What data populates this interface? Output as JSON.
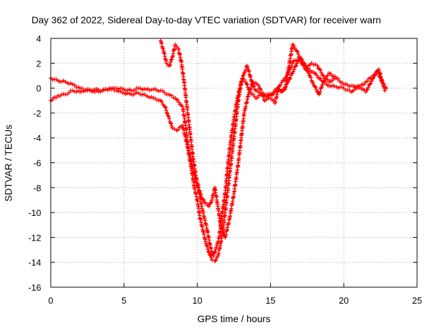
{
  "chart_data": {
    "type": "scatter",
    "title": "Day 362 of 2022, Sidereal Day-to-day VTEC variation (SDTVAR) for receiver warn",
    "xlabel": "GPS time / hours",
    "ylabel": "SDTVAR / TECUs",
    "xlim": [
      0,
      25
    ],
    "ylim": [
      -16,
      4
    ],
    "xticks": [
      "0",
      "5",
      "10",
      "15",
      "20",
      "25"
    ],
    "yticks": [
      "4",
      "2",
      "0",
      "-2",
      "-4",
      "-6",
      "-8",
      "-10",
      "-12",
      "-14",
      "-16"
    ],
    "grid": true,
    "marker": "+",
    "color": "#ff0000",
    "series": [
      {
        "name": "trace-1",
        "points": [
          [
            0.0,
            0.8
          ],
          [
            0.5,
            0.6
          ],
          [
            1.0,
            0.5
          ],
          [
            1.5,
            0.3
          ],
          [
            2.0,
            0.0
          ],
          [
            2.5,
            -0.2
          ],
          [
            3.0,
            -0.1
          ],
          [
            3.5,
            -0.2
          ],
          [
            4.0,
            -0.1
          ],
          [
            4.5,
            0.0
          ],
          [
            5.0,
            -0.1
          ],
          [
            5.5,
            -0.2
          ],
          [
            6.0,
            0.0
          ],
          [
            6.5,
            -0.1
          ],
          [
            7.0,
            -0.1
          ],
          [
            7.5,
            -0.2
          ],
          [
            8.0,
            -0.5
          ],
          [
            8.5,
            -0.8
          ],
          [
            9.0,
            -1.5
          ],
          [
            9.2,
            -3.0
          ],
          [
            9.4,
            -5.0
          ],
          [
            9.6,
            -6.5
          ],
          [
            9.8,
            -8.0
          ],
          [
            10.0,
            -9.0
          ],
          [
            10.2,
            -10.5
          ],
          [
            10.4,
            -11.5
          ],
          [
            10.6,
            -12.5
          ],
          [
            10.8,
            -13.2
          ],
          [
            11.0,
            -13.8
          ],
          [
            11.2,
            -13.9
          ],
          [
            11.4,
            -13.5
          ],
          [
            11.6,
            -12.5
          ],
          [
            11.8,
            -11.0
          ],
          [
            12.0,
            -9.0
          ],
          [
            12.2,
            -7.0
          ],
          [
            12.4,
            -5.0
          ],
          [
            12.6,
            -3.0
          ],
          [
            12.8,
            -1.0
          ],
          [
            13.0,
            0.5
          ],
          [
            13.2,
            1.2
          ],
          [
            13.4,
            1.8
          ],
          [
            13.6,
            1.0
          ],
          [
            13.8,
            0.2
          ],
          [
            14.0,
            -0.2
          ],
          [
            14.5,
            -0.6
          ],
          [
            15.0,
            -0.8
          ],
          [
            15.3,
            -1.2
          ],
          [
            15.6,
            0.2
          ],
          [
            16.0,
            0.8
          ],
          [
            16.3,
            1.5
          ],
          [
            16.6,
            2.2
          ],
          [
            17.0,
            2.3
          ],
          [
            17.5,
            1.6
          ],
          [
            18.0,
            1.2
          ],
          [
            18.5,
            0.6
          ],
          [
            19.0,
            0.2
          ],
          [
            19.5,
            0.1
          ],
          [
            20.0,
            0.0
          ],
          [
            20.5,
            -0.3
          ],
          [
            21.0,
            0.2
          ],
          [
            21.5,
            -0.3
          ],
          [
            22.0,
            0.8
          ],
          [
            22.3,
            1.4
          ],
          [
            22.6,
            0.5
          ],
          [
            22.9,
            0.0
          ]
        ]
      },
      {
        "name": "trace-2",
        "points": [
          [
            0.0,
            -1.0
          ],
          [
            0.5,
            -0.6
          ],
          [
            1.0,
            -0.5
          ],
          [
            1.5,
            -0.2
          ],
          [
            2.0,
            -0.3
          ],
          [
            2.5,
            -0.1
          ],
          [
            3.0,
            -0.3
          ],
          [
            3.5,
            -0.2
          ],
          [
            4.0,
            0.0
          ],
          [
            4.5,
            -0.2
          ],
          [
            5.0,
            -0.4
          ],
          [
            5.5,
            -0.5
          ],
          [
            6.0,
            -0.4
          ],
          [
            6.5,
            -0.6
          ],
          [
            7.0,
            -0.8
          ],
          [
            7.5,
            -1.0
          ],
          [
            7.8,
            -1.5
          ],
          [
            8.0,
            -2.2
          ],
          [
            8.3,
            -3.2
          ],
          [
            8.6,
            -3.4
          ],
          [
            9.0,
            -3.0
          ],
          [
            9.3,
            -4.5
          ],
          [
            9.6,
            -6.0
          ],
          [
            9.9,
            -7.5
          ],
          [
            10.2,
            -8.5
          ],
          [
            10.5,
            -9.2
          ],
          [
            10.8,
            -9.5
          ],
          [
            11.0,
            -9.0
          ],
          [
            11.2,
            -8.0
          ],
          [
            11.4,
            -9.5
          ],
          [
            11.6,
            -11.0
          ],
          [
            11.9,
            -12.0
          ],
          [
            12.2,
            -10.5
          ],
          [
            12.5,
            -8.5
          ],
          [
            12.8,
            -6.0
          ],
          [
            13.0,
            -4.0
          ],
          [
            13.2,
            -2.0
          ],
          [
            13.5,
            -0.5
          ],
          [
            13.8,
            0.5
          ],
          [
            14.2,
            0.2
          ],
          [
            14.6,
            -1.0
          ],
          [
            15.0,
            -0.5
          ],
          [
            15.5,
            0.0
          ],
          [
            15.8,
            -0.3
          ],
          [
            16.2,
            0.5
          ],
          [
            16.6,
            1.5
          ],
          [
            17.0,
            2.5
          ],
          [
            17.3,
            2.0
          ],
          [
            17.6,
            1.2
          ],
          [
            17.9,
            0.4
          ],
          [
            18.3,
            -0.5
          ],
          [
            18.7,
            0.8
          ],
          [
            19.0,
            1.2
          ],
          [
            19.5,
            0.8
          ],
          [
            20.0,
            0.3
          ],
          [
            20.5,
            0.2
          ],
          [
            21.0,
            0.0
          ],
          [
            21.5,
            0.5
          ],
          [
            22.0,
            1.0
          ],
          [
            22.4,
            1.5
          ],
          [
            22.8,
            -0.2
          ]
        ]
      },
      {
        "name": "trace-3",
        "points": [
          [
            7.5,
            3.8
          ],
          [
            7.7,
            3.0
          ],
          [
            7.9,
            2.0
          ],
          [
            8.1,
            1.8
          ],
          [
            8.3,
            2.5
          ],
          [
            8.5,
            3.5
          ],
          [
            8.7,
            3.2
          ],
          [
            8.9,
            2.2
          ],
          [
            9.1,
            0.5
          ],
          [
            9.3,
            -1.5
          ],
          [
            9.5,
            -3.5
          ],
          [
            9.7,
            -5.5
          ],
          [
            9.9,
            -7.0
          ],
          [
            10.1,
            -8.0
          ],
          [
            10.3,
            -9.5
          ],
          [
            10.5,
            -10.5
          ],
          [
            10.7,
            -11.5
          ],
          [
            10.9,
            -12.8
          ],
          [
            11.1,
            -13.5
          ],
          [
            11.3,
            -12.8
          ],
          [
            11.5,
            -12.0
          ],
          [
            11.7,
            -10.0
          ],
          [
            11.9,
            -8.5
          ],
          [
            12.1,
            -6.0
          ],
          [
            12.3,
            -4.0
          ],
          [
            12.5,
            -2.5
          ],
          [
            12.7,
            -1.0
          ],
          [
            12.9,
            0.0
          ],
          [
            13.1,
            0.8
          ],
          [
            13.3,
            0.5
          ],
          [
            13.6,
            -0.3
          ],
          [
            14.0,
            -0.8
          ],
          [
            14.5,
            -0.4
          ],
          [
            15.0,
            -0.6
          ],
          [
            15.5,
            -0.2
          ],
          [
            16.0,
            -0.1
          ],
          [
            16.5,
            3.5
          ],
          [
            16.8,
            3.0
          ],
          [
            17.1,
            2.0
          ],
          [
            17.4,
            1.5
          ],
          [
            17.8,
            2.0
          ],
          [
            18.2,
            1.8
          ],
          [
            18.6,
            1.0
          ],
          [
            19.0,
            0.5
          ],
          [
            19.4,
            0.8
          ]
        ]
      }
    ]
  }
}
